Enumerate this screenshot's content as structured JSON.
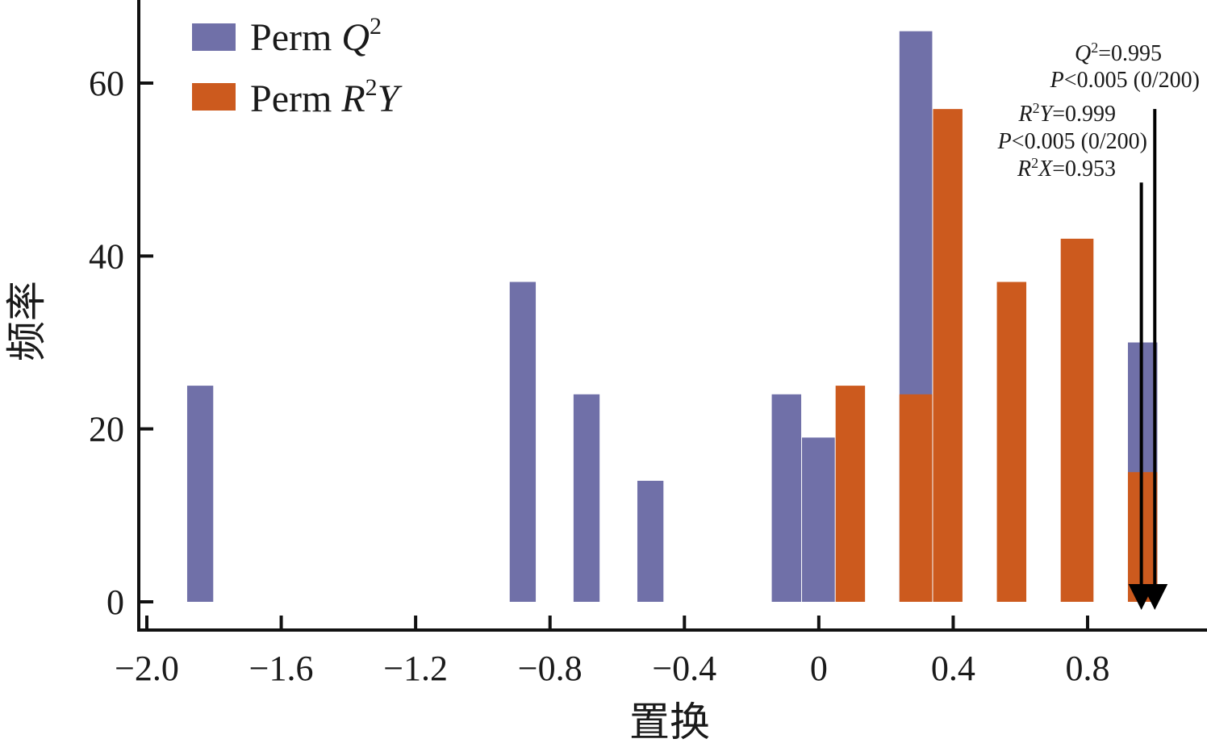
{
  "chart_data": {
    "type": "bar",
    "xlabel": "置换",
    "ylabel": "频率",
    "xlim": [
      -2.0,
      1.2
    ],
    "ylim": [
      0,
      70
    ],
    "x_ticks": [
      "−2.0",
      "−1.6",
      "−1.2",
      "−0.8",
      "−0.4",
      "0",
      "0.4",
      "0.8"
    ],
    "y_ticks": [
      "0",
      "20",
      "40",
      "60"
    ],
    "grid": false,
    "legend_position": "top-left",
    "series": [
      {
        "name": "Perm Q2",
        "label_base": "Perm ",
        "label_var": "Q",
        "label_sup": "2",
        "label_tail": "",
        "color": "#7070a8",
        "bins": [
          {
            "x0": -1.88,
            "x1": -1.8,
            "value": 25
          },
          {
            "x0": -0.92,
            "x1": -0.84,
            "value": 37
          },
          {
            "x0": -0.73,
            "x1": -0.65,
            "value": 24
          },
          {
            "x0": -0.54,
            "x1": -0.46,
            "value": 14
          },
          {
            "x0": -0.14,
            "x1": -0.05,
            "value": 24
          },
          {
            "x0": -0.05,
            "x1": 0.05,
            "value": 19
          },
          {
            "x0": 0.24,
            "x1": 0.34,
            "value": 66
          },
          {
            "x0": 0.92,
            "x1": 1.01,
            "value": 30
          }
        ]
      },
      {
        "name": "Perm R2Y",
        "label_base": "Perm ",
        "label_var": "R",
        "label_sup": "2",
        "label_tail": "Y",
        "color": "#cc5a1e",
        "bins": [
          {
            "x0": 0.05,
            "x1": 0.14,
            "value": 25
          },
          {
            "x0": 0.24,
            "x1": 0.34,
            "value": 24
          },
          {
            "x0": 0.34,
            "x1": 0.43,
            "value": 57
          },
          {
            "x0": 0.53,
            "x1": 0.62,
            "value": 37
          },
          {
            "x0": 0.72,
            "x1": 0.82,
            "value": 42
          },
          {
            "x0": 0.92,
            "x1": 1.01,
            "value": 15
          }
        ]
      }
    ],
    "arrows": [
      {
        "x": 1.0,
        "y_top": 57,
        "y_bottom": 0
      },
      {
        "x": 0.96,
        "y_top": 48.5,
        "y_bottom": 0
      }
    ],
    "annotations": {
      "q2": {
        "var": "Q",
        "sup": "2",
        "value": "=0.995"
      },
      "q2_p": {
        "var": "P",
        "text": "<0.005 (0/200)"
      },
      "r2y": {
        "var": "R",
        "sup": "2",
        "var2": "Y",
        "value": "=0.999"
      },
      "r2y_p": {
        "var": "P",
        "text": "<0.005 (0/200)"
      },
      "r2x": {
        "var": "R",
        "sup": "2",
        "var2": "X",
        "value": "=0.953"
      }
    }
  }
}
